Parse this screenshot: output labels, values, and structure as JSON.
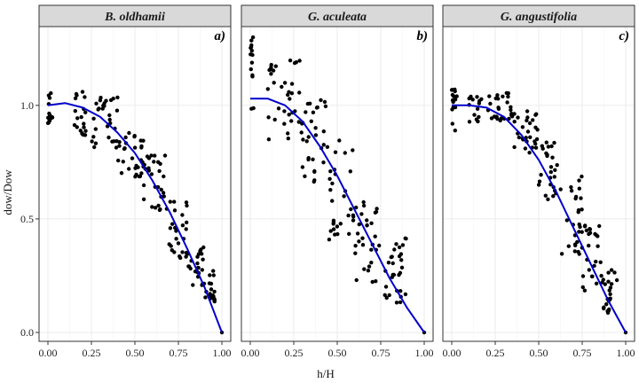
{
  "chart_data": [
    {
      "type": "scatter",
      "title": "B. oldhamii",
      "panel_label": "a)",
      "xlabel": "h/H",
      "ylabel": "dow/Dow",
      "xlim": [
        0,
        1
      ],
      "ylim": [
        0,
        1.3
      ],
      "x_ticks": [
        "0.00",
        "0.25",
        "0.50",
        "0.75",
        "1.00"
      ],
      "y_ticks": [
        "0.0",
        "0.5",
        "1.0"
      ],
      "point_color": "#000000",
      "curve_color": "#0000cc",
      "grid": true,
      "cloud": [
        {
          "x": [
            0.0,
            0.03
          ],
          "y": [
            0.92,
            1.09
          ]
        },
        {
          "x": [
            0.15,
            0.22
          ],
          "y": [
            0.86,
            1.08
          ]
        },
        {
          "x": [
            0.25,
            0.4
          ],
          "y": [
            0.8,
            1.05
          ]
        },
        {
          "x": [
            0.4,
            0.55
          ],
          "y": [
            0.68,
            0.88
          ]
        },
        {
          "x": [
            0.55,
            0.68
          ],
          "y": [
            0.52,
            0.78
          ]
        },
        {
          "x": [
            0.68,
            0.8
          ],
          "y": [
            0.32,
            0.58
          ]
        },
        {
          "x": [
            0.8,
            0.9
          ],
          "y": [
            0.2,
            0.38
          ]
        },
        {
          "x": [
            0.9,
            0.96
          ],
          "y": [
            0.12,
            0.28
          ]
        }
      ],
      "curve": {
        "x": [
          0,
          0.1,
          0.2,
          0.3,
          0.4,
          0.5,
          0.6,
          0.7,
          0.8,
          0.9,
          1.0
        ],
        "y": [
          1.0,
          1.01,
          0.99,
          0.95,
          0.88,
          0.79,
          0.67,
          0.53,
          0.37,
          0.2,
          0.0
        ]
      }
    },
    {
      "type": "scatter",
      "title": "G. aculeata",
      "panel_label": "b)",
      "xlabel": "h/H",
      "ylabel": "dow/Dow",
      "xlim": [
        0,
        1
      ],
      "ylim": [
        0,
        1.3
      ],
      "x_ticks": [
        "0.00",
        "0.25",
        "0.50",
        "0.75",
        "1.00"
      ],
      "y_ticks": [
        "0.0",
        "0.5",
        "1.0"
      ],
      "point_color": "#000000",
      "curve_color": "#0000cc",
      "grid": true,
      "cloud": [
        {
          "x": [
            0.0,
            0.02
          ],
          "y": [
            0.95,
            1.3
          ]
        },
        {
          "x": [
            0.1,
            0.3
          ],
          "y": [
            0.85,
            1.2
          ]
        },
        {
          "x": [
            0.3,
            0.45
          ],
          "y": [
            0.65,
            1.05
          ]
        },
        {
          "x": [
            0.45,
            0.6
          ],
          "y": [
            0.4,
            0.85
          ]
        },
        {
          "x": [
            0.6,
            0.75
          ],
          "y": [
            0.22,
            0.6
          ]
        },
        {
          "x": [
            0.75,
            0.9
          ],
          "y": [
            0.12,
            0.42
          ]
        }
      ],
      "curve": {
        "x": [
          0,
          0.1,
          0.2,
          0.3,
          0.4,
          0.5,
          0.6,
          0.7,
          0.8,
          0.9,
          1.0
        ],
        "y": [
          1.03,
          1.03,
          1.0,
          0.93,
          0.82,
          0.69,
          0.54,
          0.39,
          0.24,
          0.11,
          0.0
        ]
      }
    },
    {
      "type": "scatter",
      "title": "G. angustifolia",
      "panel_label": "c)",
      "xlabel": "h/H",
      "ylabel": "dow/Dow",
      "xlim": [
        0,
        1
      ],
      "ylim": [
        0,
        1.3
      ],
      "x_ticks": [
        "0.00",
        "0.25",
        "0.50",
        "0.75",
        "1.00"
      ],
      "y_ticks": [
        "0.0",
        "0.5",
        "1.0"
      ],
      "point_color": "#000000",
      "curve_color": "#0000cc",
      "grid": true,
      "cloud": [
        {
          "x": [
            0.0,
            0.03
          ],
          "y": [
            0.88,
            1.07
          ]
        },
        {
          "x": [
            0.1,
            0.35
          ],
          "y": [
            0.92,
            1.06
          ]
        },
        {
          "x": [
            0.35,
            0.5
          ],
          "y": [
            0.78,
            0.98
          ]
        },
        {
          "x": [
            0.5,
            0.62
          ],
          "y": [
            0.55,
            0.85
          ]
        },
        {
          "x": [
            0.62,
            0.75
          ],
          "y": [
            0.3,
            0.7
          ]
        },
        {
          "x": [
            0.75,
            0.87
          ],
          "y": [
            0.15,
            0.48
          ]
        },
        {
          "x": [
            0.87,
            0.95
          ],
          "y": [
            0.08,
            0.28
          ]
        }
      ],
      "curve": {
        "x": [
          0,
          0.1,
          0.2,
          0.3,
          0.4,
          0.5,
          0.6,
          0.7,
          0.8,
          0.9,
          1.0
        ],
        "y": [
          1.0,
          1.0,
          0.99,
          0.95,
          0.87,
          0.76,
          0.62,
          0.46,
          0.3,
          0.14,
          0.0
        ]
      }
    }
  ]
}
